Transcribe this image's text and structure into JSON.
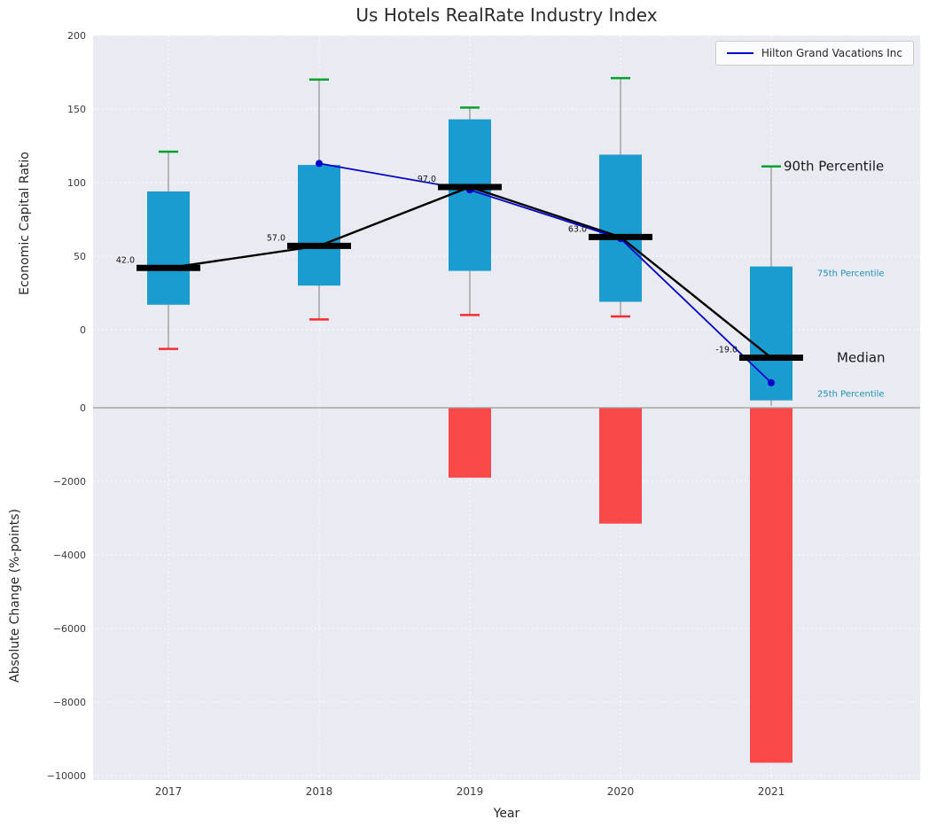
{
  "title": "Us Hotels RealRate Industry Index",
  "legend": {
    "label": "Hilton Grand Vacations Inc"
  },
  "colors": {
    "plot_bg": "#eaeaf2",
    "grid": "#ffffff",
    "box_blue": "#1b9cd1",
    "bar_red": "#f94848",
    "cap_green": "#00a02c",
    "cap_red": "#f42f2f",
    "median_black": "#000000",
    "company_blue": "#0000cd",
    "whisker_gray": "#909090",
    "zero_line_gray": "#9a9a9a",
    "percentile_label_teal": "#1b92b4",
    "text_dark": "#3b3b3b"
  },
  "chart_data": [
    {
      "type": "boxplot",
      "title": "Us Hotels RealRate Industry Index",
      "ylabel": "Economic Capital Ratio",
      "ylim": [
        -53,
        200
      ],
      "yticks": [
        200,
        150,
        100,
        50,
        0
      ],
      "grid": true,
      "legend_position": "upper right",
      "categories": [
        "2017",
        "2018",
        "2019",
        "2020",
        "2021"
      ],
      "boxes": [
        {
          "year": "2017",
          "p10": -13,
          "q25": 17,
          "median": 42,
          "q75": 94,
          "p90": 121
        },
        {
          "year": "2018",
          "p10": 7,
          "q25": 30,
          "median": 57,
          "q75": 112,
          "p90": 170
        },
        {
          "year": "2019",
          "p10": 10,
          "q25": 40,
          "median": 97,
          "q75": 143,
          "p90": 151
        },
        {
          "year": "2020",
          "p10": 9,
          "q25": 19,
          "median": 63,
          "q75": 119,
          "p90": 171
        },
        {
          "year": "2021",
          "p10": null,
          "q25": -48,
          "median": -19,
          "q75": 43,
          "p90": 111
        }
      ],
      "median_labels": [
        "42.0",
        "57.0",
        "97.0",
        "63.0",
        "-19.0"
      ],
      "series": [
        {
          "name": "Hilton Grand Vacations Inc",
          "x": [
            "2018",
            "2019",
            "2020",
            "2021"
          ],
          "values": [
            113,
            95,
            62,
            -36
          ]
        }
      ],
      "annotations": [
        {
          "text": "90th Percentile",
          "size": "large",
          "color": "#1a1a1a"
        },
        {
          "text": "75th Percentile",
          "size": "small",
          "color": "#1b92b4"
        },
        {
          "text": "Median",
          "size": "large",
          "color": "#1a1a1a"
        },
        {
          "text": "25th Percentile",
          "size": "small",
          "color": "#1b92b4"
        }
      ]
    },
    {
      "type": "bar",
      "ylabel": "Absolute Change (%-points)",
      "xlabel": "Year",
      "ylim": [
        -10120,
        60
      ],
      "yticks": [
        0,
        -2000,
        -4000,
        -6000,
        -8000,
        -10000
      ],
      "grid": true,
      "categories": [
        "2017",
        "2018",
        "2019",
        "2020",
        "2021"
      ],
      "values": [
        null,
        null,
        -1900,
        -3150,
        -9650
      ]
    }
  ]
}
